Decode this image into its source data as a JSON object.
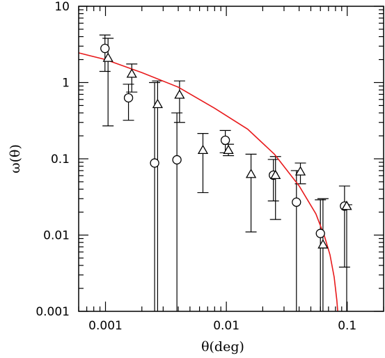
{
  "chart_data": {
    "type": "scatter",
    "title": "",
    "xlabel": "θ(deg)",
    "ylabel": "ω(θ)",
    "xscale": "log",
    "yscale": "log",
    "xlim": [
      0.0006,
      0.2
    ],
    "ylim": [
      0.001,
      10
    ],
    "grid": false,
    "x_ticks": [
      {
        "value": 0.001,
        "label": "0.001"
      },
      {
        "value": 0.01,
        "label": "0.01"
      },
      {
        "value": 0.1,
        "label": "0.1"
      }
    ],
    "y_ticks": [
      {
        "value": 0.001,
        "label": "0.001"
      },
      {
        "value": 0.01,
        "label": "0.01"
      },
      {
        "value": 0.1,
        "label": "0.1"
      },
      {
        "value": 1,
        "label": "1"
      },
      {
        "value": 10,
        "label": "10"
      }
    ],
    "series": [
      {
        "marker": "circle",
        "points": [
          {
            "x": 0.00099,
            "y": 2.8,
            "ylo": 1.4,
            "yhi": 4.2
          },
          {
            "x": 0.00155,
            "y": 0.63,
            "ylo": 0.32,
            "yhi": 0.95
          },
          {
            "x": 0.00255,
            "y": 0.088,
            "ylo": 0.001,
            "yhi": 1.0
          },
          {
            "x": 0.0039,
            "y": 0.097,
            "ylo": 0.001,
            "yhi": 0.4
          },
          {
            "x": 0.0098,
            "y": 0.175,
            "ylo": 0.12,
            "yhi": 0.235
          },
          {
            "x": 0.0245,
            "y": 0.061,
            "ylo": 0.028,
            "yhi": 0.098
          },
          {
            "x": 0.038,
            "y": 0.027,
            "ylo": 0.001,
            "yhi": 0.07
          },
          {
            "x": 0.06,
            "y": 0.0105,
            "ylo": 0.001,
            "yhi": 0.029
          },
          {
            "x": 0.095,
            "y": 0.024,
            "ylo": 0.0038,
            "yhi": 0.044
          }
        ]
      },
      {
        "marker": "triangle",
        "points": [
          {
            "x": 0.00105,
            "y": 2.1,
            "ylo": 0.27,
            "yhi": 3.8
          },
          {
            "x": 0.00165,
            "y": 1.3,
            "ylo": 0.75,
            "yhi": 1.75
          },
          {
            "x": 0.0027,
            "y": 0.52,
            "ylo": 0.001,
            "yhi": 1.05
          },
          {
            "x": 0.0041,
            "y": 0.69,
            "ylo": 0.3,
            "yhi": 1.05
          },
          {
            "x": 0.0064,
            "y": 0.13,
            "ylo": 0.036,
            "yhi": 0.215
          },
          {
            "x": 0.0104,
            "y": 0.13,
            "ylo": 0.11,
            "yhi": 0.155
          },
          {
            "x": 0.016,
            "y": 0.063,
            "ylo": 0.011,
            "yhi": 0.115
          },
          {
            "x": 0.0255,
            "y": 0.061,
            "ylo": 0.016,
            "yhi": 0.107
          },
          {
            "x": 0.041,
            "y": 0.068,
            "ylo": 0.047,
            "yhi": 0.088
          },
          {
            "x": 0.063,
            "y": 0.0075,
            "ylo": 0.001,
            "yhi": 0.03
          },
          {
            "x": 0.099,
            "y": 0.024,
            "ylo": 0.001,
            "yhi": 0.025
          }
        ]
      },
      {
        "marker": "line",
        "color": "#e8191b",
        "points": [
          {
            "x": 0.0006,
            "y": 2.45
          },
          {
            "x": 0.001,
            "y": 2.0
          },
          {
            "x": 0.002,
            "y": 1.35
          },
          {
            "x": 0.004,
            "y": 0.87
          },
          {
            "x": 0.008,
            "y": 0.46
          },
          {
            "x": 0.015,
            "y": 0.245
          },
          {
            "x": 0.025,
            "y": 0.115
          },
          {
            "x": 0.04,
            "y": 0.044
          },
          {
            "x": 0.055,
            "y": 0.019
          },
          {
            "x": 0.065,
            "y": 0.0095
          },
          {
            "x": 0.072,
            "y": 0.0055
          },
          {
            "x": 0.078,
            "y": 0.0028
          },
          {
            "x": 0.082,
            "y": 0.0014
          },
          {
            "x": 0.0835,
            "y": 0.001
          }
        ]
      }
    ]
  }
}
